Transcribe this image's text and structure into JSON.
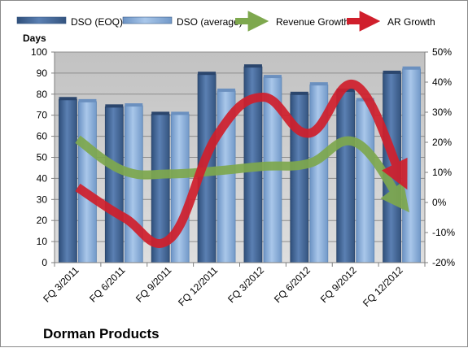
{
  "chart_data": {
    "type": "bar",
    "footer_title": "Dorman Products",
    "ylabel_left": "Days",
    "categories": [
      "FQ 3/2011",
      "FQ 6/2011",
      "FQ 9/2011",
      "FQ 12/2011",
      "FQ 3/2012",
      "FQ 6/2012",
      "FQ 9/2012",
      "FQ 12/2012"
    ],
    "ylim_left": [
      0,
      100
    ],
    "ylim_right": [
      -20,
      50
    ],
    "left_ticks": [
      "0",
      "10",
      "20",
      "30",
      "40",
      "50",
      "60",
      "70",
      "80",
      "90",
      "100"
    ],
    "right_ticks": [
      "-20%",
      "-10%",
      "0%",
      "10%",
      "20%",
      "30%",
      "40%",
      "50%"
    ],
    "grid": true,
    "legend_position": "top",
    "series": [
      {
        "name": "DSO (EOQ)",
        "kind": "bar",
        "axis": "left",
        "color": "#4a6d9c",
        "values": [
          77.5,
          74,
          70.5,
          89.5,
          93,
          80,
          81.5,
          90
        ]
      },
      {
        "name": "DSO (average)",
        "kind": "bar",
        "axis": "left",
        "color": "#8fb4de",
        "values": [
          76.5,
          74.5,
          70.5,
          81.5,
          88,
          84.5,
          77,
          92
        ]
      },
      {
        "name": "Revenue Growth",
        "kind": "line-arrow",
        "axis": "right",
        "color": "#7ea84e",
        "values": [
          21,
          10.5,
          9.5,
          10.5,
          12,
          13,
          20,
          0
        ]
      },
      {
        "name": "AR Growth",
        "kind": "line-arrow",
        "axis": "right",
        "color": "#d01f2c",
        "values": [
          5,
          -5,
          -12,
          22,
          35,
          23,
          39,
          8
        ]
      }
    ]
  }
}
